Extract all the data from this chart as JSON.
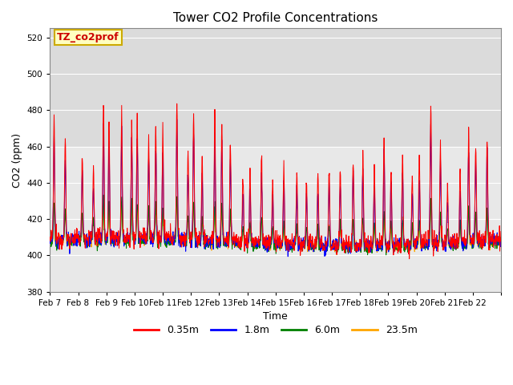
{
  "title": "Tower CO2 Profile Concentrations",
  "xlabel": "Time",
  "ylabel": "CO2 (ppm)",
  "annotation": "TZ_co2prof",
  "ylim": [
    380,
    525
  ],
  "yticks": [
    380,
    400,
    420,
    440,
    460,
    480,
    500,
    520
  ],
  "legend_labels": [
    "0.35m",
    "1.8m",
    "6.0m",
    "23.5m"
  ],
  "line_colors": [
    "#ff0000",
    "#0000ff",
    "#008000",
    "#ffa500"
  ],
  "background_color": "#ffffff",
  "plot_bg_color": "#e8e8e8",
  "plot_bg_upper": "#d8d8d8",
  "grid_color": "#ffffff",
  "num_days": 16,
  "points_per_day": 96,
  "x_tick_labels": [
    "Feb 7",
    "Feb 8",
    "Feb 9",
    "Feb 10",
    "Feb 11",
    "Feb 12",
    "Feb 13",
    "Feb 14",
    "Feb 15",
    "Feb 16",
    "Feb 17",
    "Feb 18",
    "Feb 19",
    "Feb 20",
    "Feb 21",
    "Feb 22"
  ],
  "annotation_bg": "#ffffc0",
  "annotation_border": "#ccaa00",
  "figsize": [
    6.4,
    4.8
  ],
  "dpi": 100
}
